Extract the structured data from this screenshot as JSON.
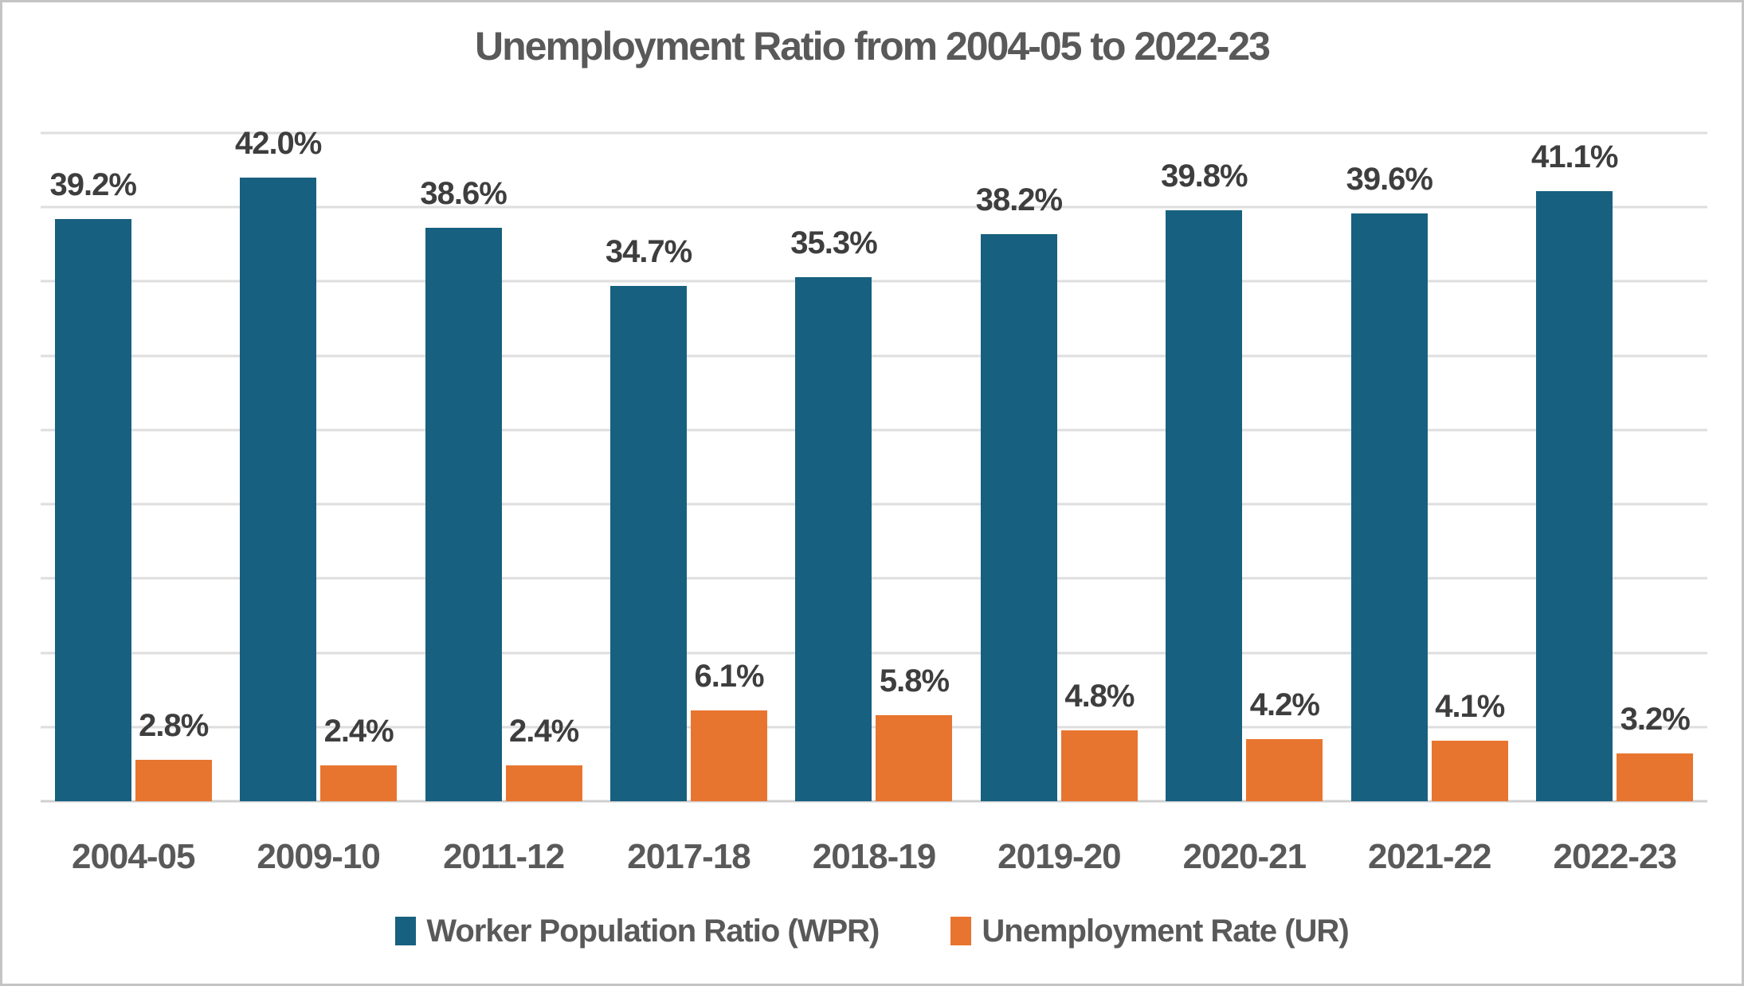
{
  "title": "Unemployment Ratio from 2004-05 to 2022-23",
  "chart_data": {
    "type": "bar",
    "title": "Unemployment Ratio from 2004-05 to 2022-23",
    "categories": [
      "2004-05",
      "2009-10",
      "2011-12",
      "2017-18",
      "2018-19",
      "2019-20",
      "2020-21",
      "2021-22",
      "2022-23"
    ],
    "series": [
      {
        "name": "Worker Population Ratio (WPR)",
        "color": "#18607F",
        "values": [
          39.2,
          42.0,
          38.6,
          34.7,
          35.3,
          38.2,
          39.8,
          39.6,
          41.1
        ],
        "labels": [
          "39.2%",
          "42.0%",
          "38.6%",
          "34.7%",
          "35.3%",
          "38.2%",
          "39.8%",
          "39.6%",
          "41.1%"
        ]
      },
      {
        "name": "Unemployment Rate (UR)",
        "color": "#E8752F",
        "values": [
          2.8,
          2.4,
          2.4,
          6.1,
          5.8,
          4.8,
          4.2,
          4.1,
          3.2
        ],
        "labels": [
          "2.8%",
          "2.4%",
          "2.4%",
          "6.1%",
          "5.8%",
          "4.8%",
          "4.2%",
          "4.1%",
          "3.2%"
        ]
      }
    ],
    "xlabel": "",
    "ylabel": "",
    "ylim": [
      0,
      45
    ],
    "gridline_step": 5,
    "grid": true,
    "y_axis_labels_visible": false,
    "legend_position": "bottom"
  },
  "colors": {
    "title_text": "#595959",
    "data_label_text": "#3E3E3E",
    "axis_label_text": "#595959",
    "gridline": "#DEDEDE",
    "axis_line": "#CFCFCF",
    "background": "#FFFFFF",
    "frame_border": "#C4C4C4"
  }
}
